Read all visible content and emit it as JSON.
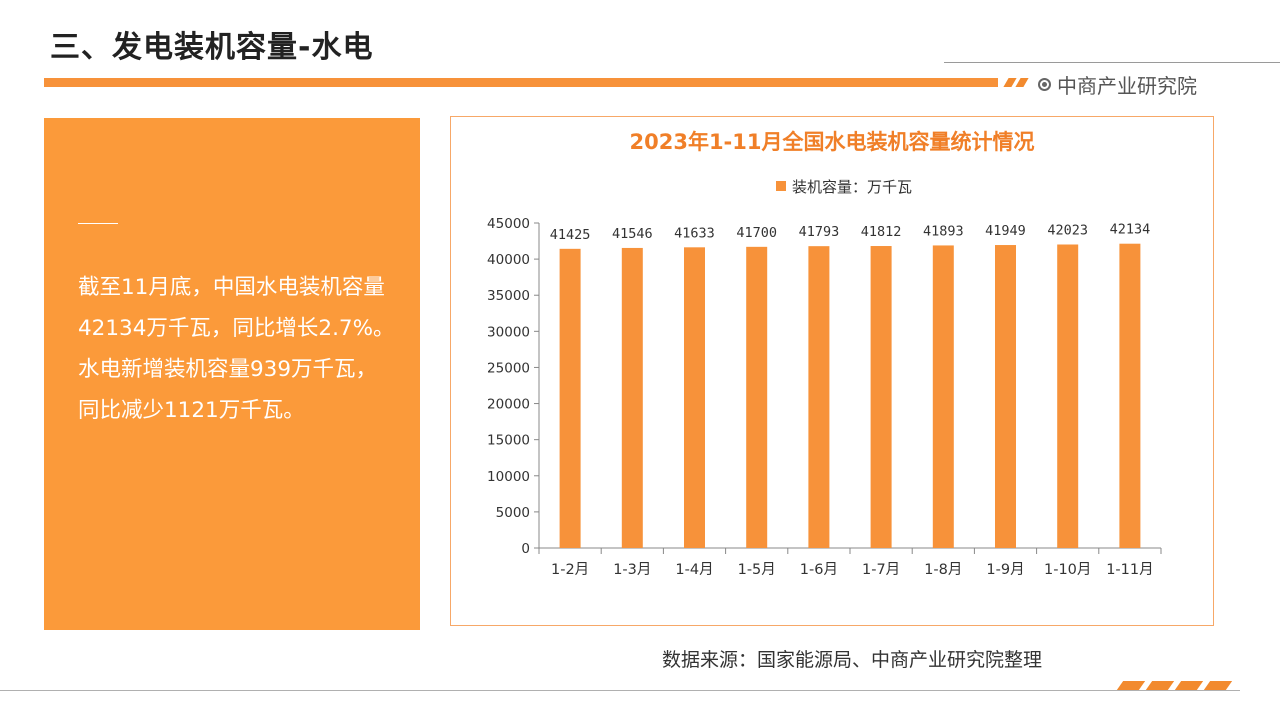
{
  "header": {
    "title": "三、发电装机容量-水电",
    "brand": "中商产业研究院"
  },
  "summary": {
    "text": "截至11月底，中国水电装机容量42134万千瓦，同比增长2.7%。水电新增装机容量939万千瓦，同比减少1121万千瓦。"
  },
  "source": "数据来源：国家能源局、中商产业研究院整理",
  "colors": {
    "accent": "#f7923a",
    "bar": "#f7923a",
    "panel": "#fb9a3a"
  },
  "icons": {
    "brand": "target-icon"
  },
  "chart_data": {
    "type": "bar",
    "title": "2023年1-11月全国水电装机容量统计情况",
    "legend": "top",
    "categories": [
      "1-2月",
      "1-3月",
      "1-4月",
      "1-5月",
      "1-6月",
      "1-7月",
      "1-8月",
      "1-9月",
      "1-10月",
      "1-11月"
    ],
    "series": [
      {
        "name": "装机容量：万千瓦",
        "values": [
          41425,
          41546,
          41633,
          41700,
          41793,
          41812,
          41893,
          41949,
          42023,
          42134
        ]
      }
    ],
    "ylim": [
      0,
      45000
    ],
    "yticks": [
      0,
      5000,
      10000,
      15000,
      20000,
      25000,
      30000,
      35000,
      40000,
      45000
    ],
    "grid": false
  }
}
